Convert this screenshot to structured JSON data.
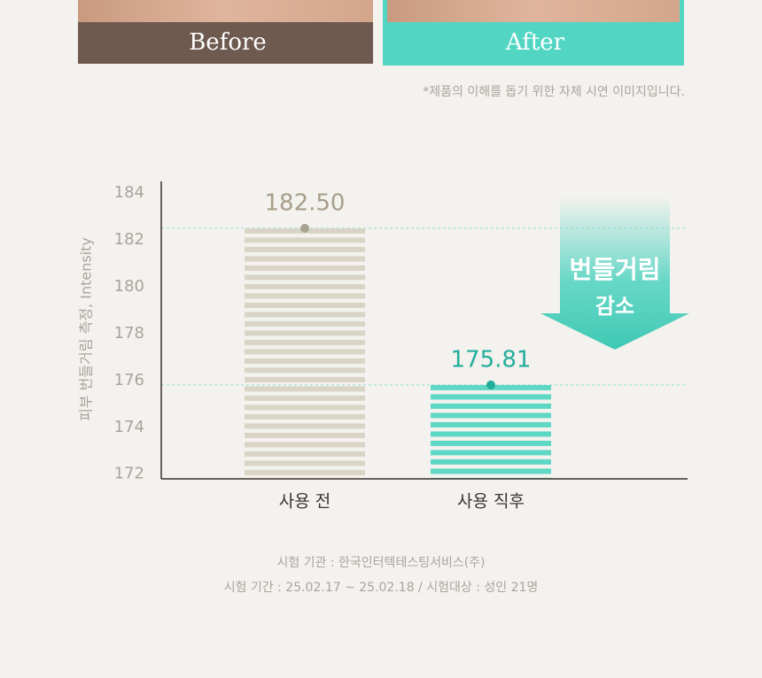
{
  "header": {
    "before_label": "Before",
    "after_label": "After",
    "note": "*제품의 이해를 돕기 위한 자체 시연 이미지입니다."
  },
  "chart_data": {
    "type": "bar",
    "y_label": "피부 번들거림 측정, Intensity",
    "categories": [
      "사용 전",
      "사용 직후"
    ],
    "values": [
      182.5,
      175.81
    ],
    "value_labels": [
      "182.50",
      "175.81"
    ],
    "colors": [
      "#d9d4c6",
      "#5ed7c5"
    ],
    "label_colors": [
      "#a89e8a",
      "#22ad9c"
    ],
    "ylim": [
      171.8,
      184.5
    ],
    "yticks": [
      172,
      174,
      176,
      178,
      180,
      182,
      184
    ],
    "annotation": [
      "번들거림",
      "감소"
    ]
  },
  "footer": {
    "lines": [
      "시험 기관 : 한국인터텍테스팅서비스(주)",
      "시험 기간 : 25.02.17 ~ 25.02.18 / 시험대상 : 성인 21명"
    ]
  }
}
